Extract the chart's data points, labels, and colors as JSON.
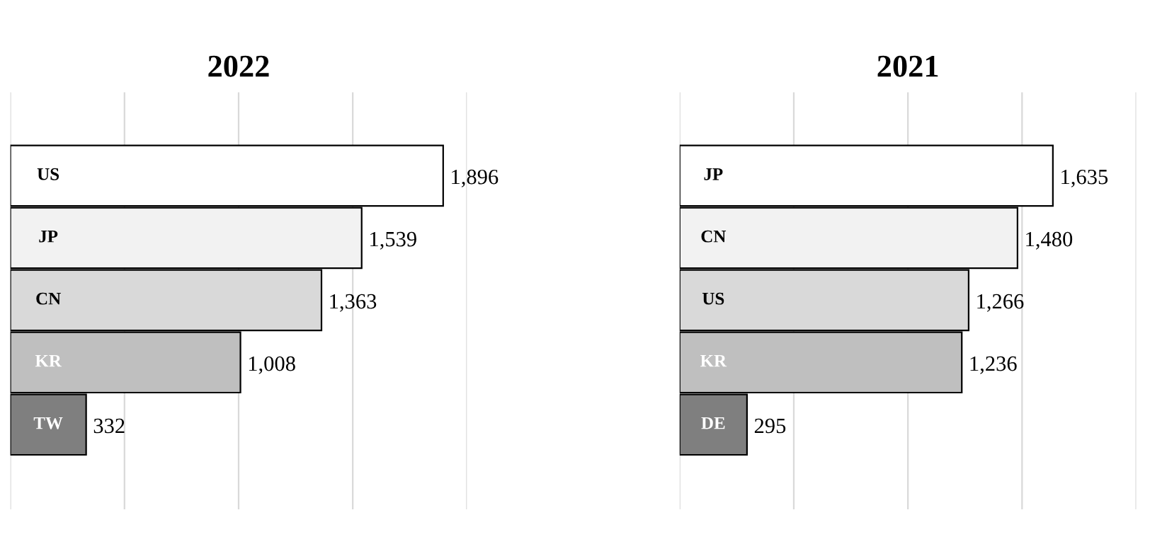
{
  "chart_data": [
    {
      "type": "bar",
      "orientation": "horizontal",
      "title": "2022",
      "categories": [
        "US",
        "JP",
        "CN",
        "KR",
        "TW"
      ],
      "values": [
        1896,
        1539,
        1363,
        1008,
        332
      ],
      "value_labels": [
        "1,896",
        "1,539",
        "1,363",
        "1,008",
        "332"
      ],
      "colors": [
        "#ffffff",
        "#f2f2f2",
        "#d9d9d9",
        "#bfbfbf",
        "#7f7f7f"
      ],
      "xlim": [
        0,
        2000
      ],
      "xticks": [
        {
          "value": 0,
          "label": null
        },
        {
          "value": 500,
          "label": null
        },
        {
          "value": 1000,
          "label": null
        },
        {
          "value": 1500,
          "label": null
        },
        {
          "value": 2000,
          "label": null
        }
      ],
      "grid": "x"
    },
    {
      "type": "bar",
      "orientation": "horizontal",
      "title": "2021",
      "categories": [
        "JP",
        "CN",
        "US",
        "KR",
        "DE"
      ],
      "values": [
        1635,
        1480,
        1266,
        1236,
        295
      ],
      "value_labels": [
        "1,635",
        "1,480",
        "1,266",
        "1,236",
        "295"
      ],
      "colors": [
        "#ffffff",
        "#f2f2f2",
        "#d9d9d9",
        "#bfbfbf",
        "#7f7f7f"
      ],
      "xlim": [
        0,
        2000
      ],
      "xticks": [
        {
          "value": 0,
          "label": null
        },
        {
          "value": 500,
          "label": null
        },
        {
          "value": 1000,
          "label": null
        },
        {
          "value": 1500,
          "label": null
        },
        {
          "value": 2000,
          "label": null
        }
      ],
      "grid": "x"
    }
  ]
}
